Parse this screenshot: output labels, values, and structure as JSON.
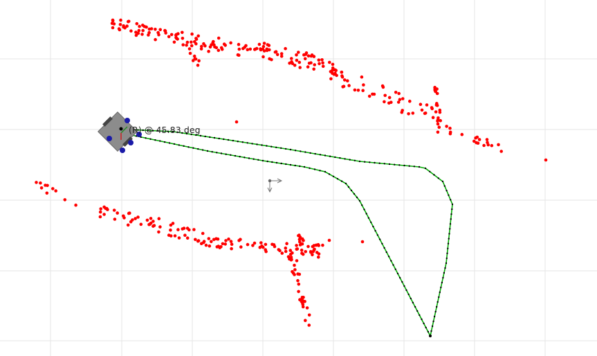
{
  "robot": {
    "label": "(R) @ 45.83 deg",
    "body_color": "#8c8c8c",
    "wheel_color": "#444444",
    "bumper_color": "#1a1aa8"
  },
  "map": {
    "grid_color": "#e6e6e6",
    "landmark_color": "#ff0000",
    "path_color": "#00aa00",
    "path_node_color": "#000000",
    "origin_axis_color": "#777777"
  }
}
